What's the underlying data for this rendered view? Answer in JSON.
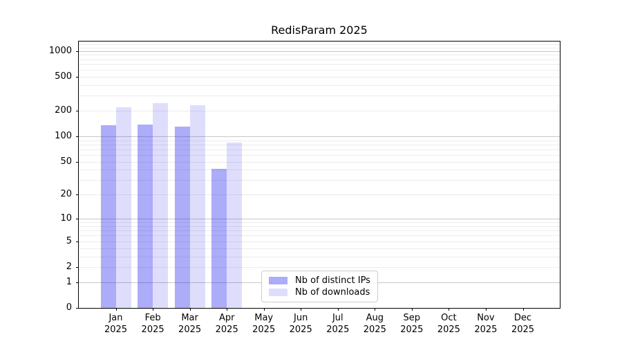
{
  "figure": {
    "title": "RedisParam 2025"
  },
  "chart_data": {
    "type": "bar",
    "title": "RedisParam 2025",
    "categories": [
      "Jan",
      "Feb",
      "Mar",
      "Apr",
      "May",
      "Jun",
      "Jul",
      "Aug",
      "Sep",
      "Oct",
      "Nov",
      "Dec"
    ],
    "category_year": "2025",
    "series": [
      {
        "name": "Nb of distinct IPs",
        "color": "rgba(18,18,236,0.35)",
        "values": [
          135,
          137,
          131,
          41,
          0,
          0,
          0,
          0,
          0,
          0,
          0,
          0
        ]
      },
      {
        "name": "Nb of downloads",
        "color": "rgba(18,18,236,0.14)",
        "values": [
          218,
          246,
          232,
          85,
          0,
          0,
          0,
          0,
          0,
          0,
          0,
          0
        ]
      }
    ],
    "y_axis": {
      "scale": "symlog_ln(1+v)",
      "ticks": [
        0,
        1,
        2,
        5,
        10,
        20,
        50,
        100,
        200,
        500,
        1000
      ],
      "range": [
        0,
        1290
      ]
    },
    "grid": {
      "on": true,
      "major_levels": [
        1,
        10,
        100,
        1000
      ],
      "major_color": "#c8c8c8",
      "minor_color": "#ececec"
    },
    "legend": {
      "position": "lower-center",
      "entries": [
        "Nb of distinct IPs",
        "Nb of downloads"
      ]
    },
    "colors": {
      "bar_primary_on_white": "#aaaaf8",
      "bar_secondary_on_white": "#dbdbfa",
      "spine": "#000000",
      "text": "#000000"
    }
  }
}
